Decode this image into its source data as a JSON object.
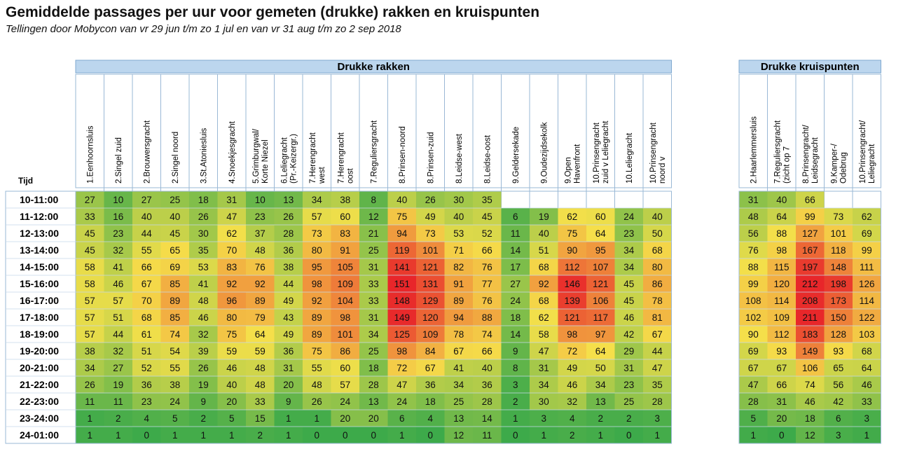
{
  "title": "Gemiddelde passages per uur voor gemeten (drukke) rakken en kruispunten",
  "subtitle": "Tellingen door Mobycon van vr 29 jun t/m zo 1 jul en van vr 31 aug t/m zo 2 sep 2018",
  "chart_data": {
    "type": "heatmap",
    "row_header": "Tijd",
    "rows": [
      "10-11:00",
      "11-12:00",
      "12-13:00",
      "13-14:00",
      "14-15:00",
      "15-16:00",
      "16-17:00",
      "17-18:00",
      "18-19:00",
      "19-20:00",
      "20-21:00",
      "21-22:00",
      "22-23:00",
      "23-24:00",
      "24-01:00"
    ],
    "color_scale": {
      "low": "#3daa4a",
      "mid": "#f5e04a",
      "high": "#e8262a"
    },
    "groups": [
      {
        "name": "Drukke rakken",
        "columns": [
          [
            "1.Eenhoornsluis"
          ],
          [
            "2.Singel zuid"
          ],
          [
            "2.Brouwersgracht"
          ],
          [
            "2.Singel noord"
          ],
          [
            "3.St.Atoniesluis"
          ],
          [
            "4.Snoekjesgracht"
          ],
          [
            "5.Grimburgwal/",
            "Korte Niezel"
          ],
          [
            "6.Leliegracht",
            "(Pr.-Keizergr.)"
          ],
          [
            "7.Herengracht",
            "west"
          ],
          [
            "7.Herengracht",
            "oost"
          ],
          [
            "7.Reguliersgracht"
          ],
          [
            "8.Prinsen-noord"
          ],
          [
            "8.Prinsen-zuid"
          ],
          [
            "8.Leidse-west"
          ],
          [
            "8.Leidse-oost"
          ],
          [
            "9.Geldersekade"
          ],
          [
            "9.Oudezijdsekolk"
          ],
          [
            "9.Open",
            "Havenfront"
          ],
          [
            "10.Prinsengracht",
            "zuid v Leliegracht"
          ],
          [
            "10.Leliegracht"
          ],
          [
            "10.Prinsengracht",
            "noord v"
          ]
        ],
        "values": [
          [
            27,
            10,
            27,
            25,
            18,
            31,
            10,
            13,
            34,
            38,
            8,
            40,
            26,
            30,
            35,
            null,
            null,
            null,
            null,
            null,
            null
          ],
          [
            33,
            16,
            40,
            40,
            26,
            47,
            23,
            26,
            57,
            60,
            12,
            75,
            49,
            40,
            45,
            6,
            19,
            62,
            60,
            24,
            40
          ],
          [
            45,
            23,
            44,
            45,
            30,
            62,
            37,
            28,
            73,
            83,
            21,
            94,
            73,
            53,
            52,
            11,
            40,
            75,
            64,
            23,
            50
          ],
          [
            45,
            32,
            55,
            65,
            35,
            70,
            48,
            36,
            80,
            91,
            25,
            119,
            101,
            71,
            66,
            14,
            51,
            90,
            95,
            34,
            68
          ],
          [
            58,
            41,
            66,
            69,
            53,
            83,
            76,
            38,
            95,
            105,
            31,
            141,
            121,
            82,
            76,
            17,
            68,
            112,
            107,
            34,
            80
          ],
          [
            58,
            46,
            67,
            85,
            41,
            92,
            92,
            44,
            98,
            109,
            33,
            151,
            131,
            91,
            77,
            27,
            92,
            146,
            121,
            45,
            86
          ],
          [
            57,
            57,
            70,
            89,
            48,
            96,
            89,
            49,
            92,
            104,
            33,
            148,
            129,
            89,
            76,
            24,
            68,
            139,
            106,
            45,
            78
          ],
          [
            57,
            51,
            68,
            85,
            46,
            80,
            79,
            43,
            89,
            98,
            31,
            149,
            120,
            94,
            88,
            18,
            62,
            121,
            117,
            46,
            81
          ],
          [
            57,
            44,
            61,
            74,
            32,
            75,
            64,
            49,
            89,
            101,
            34,
            125,
            109,
            78,
            74,
            14,
            58,
            98,
            97,
            42,
            67
          ],
          [
            38,
            32,
            51,
            54,
            39,
            59,
            59,
            36,
            75,
            86,
            25,
            98,
            84,
            67,
            66,
            9,
            47,
            72,
            64,
            29,
            44
          ],
          [
            34,
            27,
            52,
            55,
            26,
            46,
            48,
            31,
            55,
            60,
            18,
            72,
            67,
            41,
            40,
            8,
            31,
            49,
            50,
            31,
            47
          ],
          [
            26,
            19,
            36,
            38,
            19,
            40,
            48,
            20,
            48,
            57,
            28,
            47,
            36,
            34,
            36,
            3,
            34,
            46,
            34,
            23,
            35
          ],
          [
            11,
            11,
            23,
            24,
            9,
            20,
            33,
            9,
            26,
            24,
            13,
            24,
            18,
            25,
            28,
            2,
            30,
            32,
            13,
            25,
            28
          ],
          [
            1,
            2,
            4,
            5,
            2,
            5,
            15,
            1,
            1,
            20,
            20,
            6,
            4,
            13,
            14,
            1,
            3,
            4,
            2,
            2,
            3
          ],
          [
            1,
            1,
            0,
            1,
            1,
            1,
            2,
            1,
            0,
            0,
            0,
            1,
            0,
            12,
            11,
            0,
            1,
            2,
            1,
            0,
            1
          ]
        ]
      },
      {
        "name": "Drukke kruispunten",
        "columns": [
          [
            "2.Haarlemmersluis"
          ],
          [
            "7.Reguliersgracht",
            "(zicht op 7"
          ],
          [
            "8.Prinsengracht/",
            "Leidsegracht"
          ],
          [
            "9.Kamper-/",
            "Odebrug"
          ],
          [
            "10.Prinsengracht/",
            "Leliegracht"
          ]
        ],
        "values": [
          [
            31,
            40,
            66,
            null,
            null
          ],
          [
            48,
            64,
            99,
            73,
            62
          ],
          [
            56,
            88,
            127,
            101,
            69
          ],
          [
            76,
            98,
            167,
            118,
            99
          ],
          [
            88,
            115,
            197,
            148,
            111
          ],
          [
            99,
            120,
            212,
            198,
            126
          ],
          [
            108,
            114,
            208,
            173,
            114
          ],
          [
            102,
            109,
            211,
            150,
            122
          ],
          [
            90,
            112,
            183,
            128,
            103
          ],
          [
            69,
            93,
            149,
            93,
            68
          ],
          [
            67,
            67,
            106,
            65,
            64
          ],
          [
            47,
            66,
            74,
            56,
            46
          ],
          [
            28,
            31,
            46,
            42,
            33
          ],
          [
            5,
            20,
            18,
            6,
            3
          ],
          [
            1,
            0,
            12,
            3,
            1
          ]
        ]
      }
    ]
  }
}
